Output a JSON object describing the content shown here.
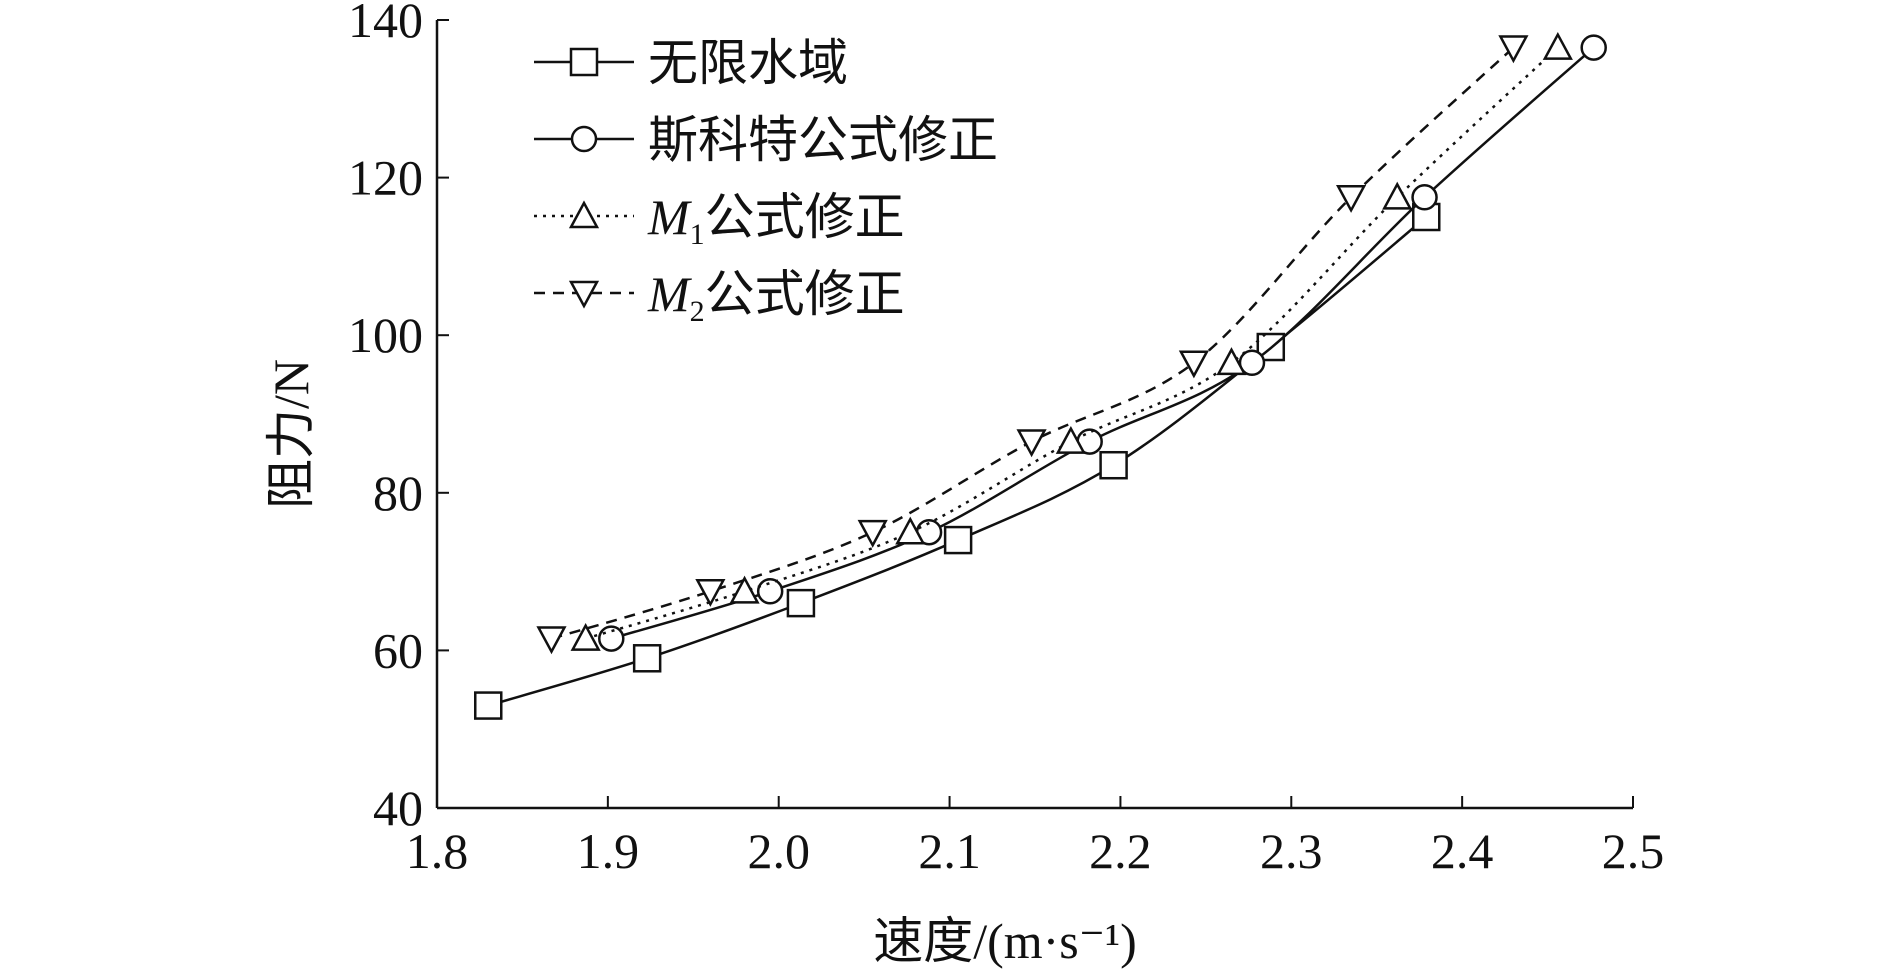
{
  "chart_data": {
    "type": "line",
    "title": "",
    "xlabel": "速度/(m·s⁻¹)",
    "ylabel": "阻力/N",
    "xlim": [
      1.8,
      2.5
    ],
    "ylim": [
      40,
      140
    ],
    "xticks": [
      "1.8",
      "1.9",
      "2.0",
      "2.1",
      "2.2",
      "2.3",
      "2.4",
      "2.5"
    ],
    "yticks": [
      "40",
      "60",
      "80",
      "100",
      "120",
      "140"
    ],
    "grid": false,
    "legend_position": "top-left",
    "series": [
      {
        "name": "无限水域",
        "marker": "square",
        "line_style": "solid",
        "x": [
          1.83,
          1.923,
          2.013,
          2.105,
          2.196,
          2.288,
          2.379
        ],
        "y": [
          53,
          59,
          66,
          74,
          83.5,
          98.5,
          115
        ]
      },
      {
        "name": "斯科特公式修正",
        "marker": "circle",
        "line_style": "solid",
        "x": [
          1.902,
          1.995,
          2.088,
          2.182,
          2.277,
          2.378,
          2.477
        ],
        "y": [
          61.5,
          67.5,
          75,
          86.5,
          96.5,
          117.5,
          136.5
        ]
      },
      {
        "name": "M₁公式修正",
        "legend_main": "M",
        "legend_sub": "1",
        "legend_rest": "公式修正",
        "marker": "triangle-up",
        "line_style": "dotted",
        "x": [
          1.887,
          1.98,
          2.077,
          2.171,
          2.265,
          2.362,
          2.456
        ],
        "y": [
          61.5,
          67.5,
          75,
          86.5,
          96.5,
          117.5,
          136.5
        ]
      },
      {
        "name": "M₂公式修正",
        "legend_main": "M",
        "legend_sub": "2",
        "legend_rest": "公式修正",
        "marker": "triangle-down",
        "line_style": "dashed",
        "x": [
          1.867,
          1.96,
          2.055,
          2.148,
          2.243,
          2.335,
          2.43
        ],
        "y": [
          61.5,
          67.5,
          75,
          86.5,
          96.5,
          117.5,
          136.5
        ]
      }
    ]
  }
}
